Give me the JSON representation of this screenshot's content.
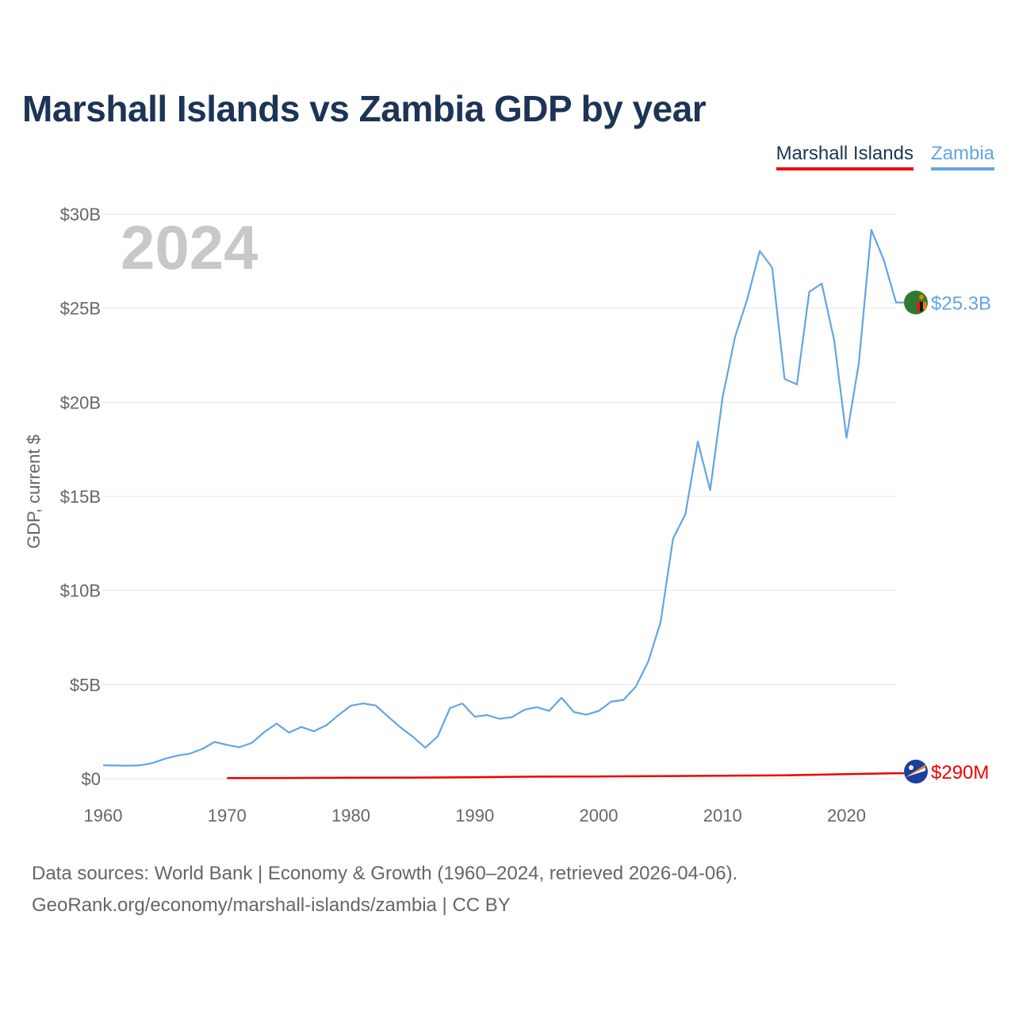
{
  "chart_data": {
    "type": "line",
    "title": "Marshall Islands vs Zambia GDP by year",
    "year_label": "2024",
    "ylabel": "GDP, current $",
    "xlim": [
      1960,
      2024
    ],
    "ylim": [
      0,
      30
    ],
    "y_unit": "billion USD",
    "y_ticks": [
      {
        "value": 0,
        "label": "$0"
      },
      {
        "value": 5,
        "label": "$5B"
      },
      {
        "value": 10,
        "label": "$10B"
      },
      {
        "value": 15,
        "label": "$15B"
      },
      {
        "value": 20,
        "label": "$20B"
      },
      {
        "value": 25,
        "label": "$25B"
      },
      {
        "value": 30,
        "label": "$30B"
      }
    ],
    "x_ticks": [
      1960,
      1970,
      1980,
      1990,
      2000,
      2010,
      2020
    ],
    "legend": {
      "position": "top-right"
    },
    "series": [
      {
        "name": "Marshall Islands",
        "color": "#ee0000",
        "end_label": "$290M",
        "flag_icon": "marshall-islands-flag-icon",
        "x": [
          1970,
          1975,
          1980,
          1985,
          1990,
          1995,
          2000,
          2005,
          2010,
          2015,
          2020,
          2024
        ],
        "values": [
          0.03,
          0.04,
          0.05,
          0.06,
          0.08,
          0.11,
          0.12,
          0.14,
          0.16,
          0.18,
          0.24,
          0.29
        ]
      },
      {
        "name": "Zambia",
        "color": "#63a5e3",
        "end_label": "$25.3B",
        "flag_icon": "zambia-flag-icon",
        "x": [
          1960,
          1961,
          1962,
          1963,
          1964,
          1965,
          1966,
          1967,
          1968,
          1969,
          1970,
          1971,
          1972,
          1973,
          1974,
          1975,
          1976,
          1977,
          1978,
          1979,
          1980,
          1981,
          1982,
          1983,
          1984,
          1985,
          1986,
          1987,
          1988,
          1989,
          1990,
          1991,
          1992,
          1993,
          1994,
          1995,
          1996,
          1997,
          1998,
          1999,
          2000,
          2001,
          2002,
          2003,
          2004,
          2005,
          2006,
          2007,
          2008,
          2009,
          2010,
          2011,
          2012,
          2013,
          2014,
          2015,
          2016,
          2017,
          2018,
          2019,
          2020,
          2021,
          2022,
          2023,
          2024
        ],
        "values": [
          0.71,
          0.7,
          0.69,
          0.71,
          0.83,
          1.06,
          1.23,
          1.33,
          1.58,
          1.95,
          1.8,
          1.67,
          1.9,
          2.47,
          2.93,
          2.45,
          2.75,
          2.52,
          2.83,
          3.38,
          3.88,
          4.0,
          3.89,
          3.3,
          2.73,
          2.23,
          1.65,
          2.24,
          3.75,
          4.0,
          3.29,
          3.38,
          3.18,
          3.27,
          3.66,
          3.8,
          3.6,
          4.3,
          3.54,
          3.4,
          3.6,
          4.09,
          4.19,
          4.9,
          6.22,
          8.33,
          12.76,
          14.06,
          17.91,
          15.33,
          20.27,
          23.46,
          25.5,
          28.04,
          27.15,
          21.24,
          20.95,
          25.87,
          26.31,
          23.31,
          18.11,
          22.1,
          29.16,
          27.58,
          25.3
        ]
      }
    ]
  },
  "footer": {
    "line1": "Data sources: World Bank | Economy & Growth (1960–2024, retrieved 2026-04-06).",
    "line2": "GeoRank.org/economy/marshall-islands/zambia | CC BY"
  }
}
